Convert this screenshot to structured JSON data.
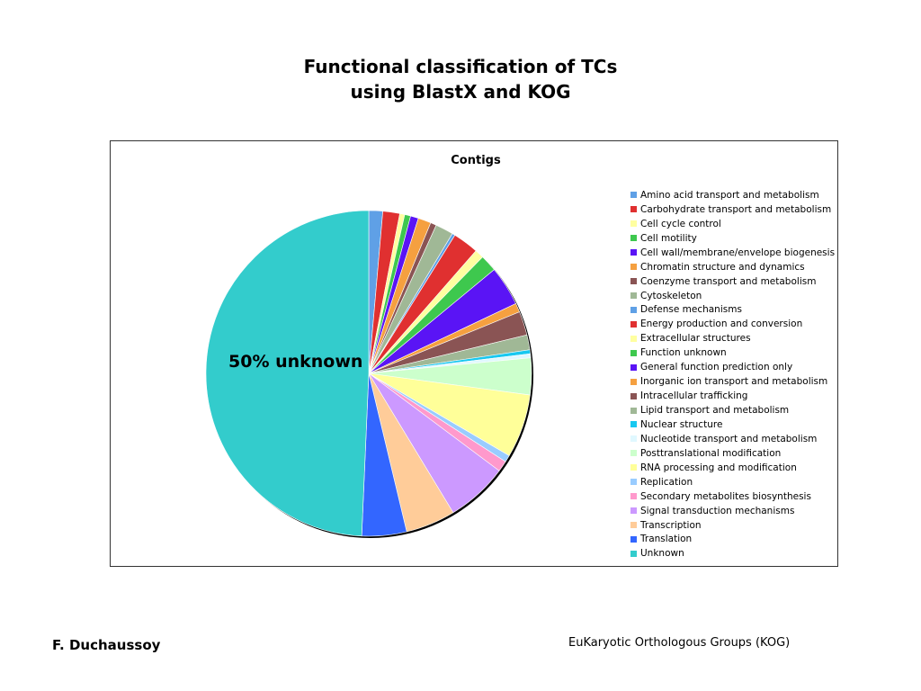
{
  "slide": {
    "title_line1": "Functional classification of TCs",
    "title_line2": "using BlastX and KOG",
    "author": "F. Duchaussoy",
    "footer_note": "EuKaryotic Orthologous Groups (KOG)"
  },
  "chart_data": {
    "type": "pie",
    "title": "Contigs",
    "annotation": "50% unknown",
    "legend_position": "right",
    "start_angle_deg": 0,
    "direction": "clockwise",
    "categories": [
      "Amino acid transport and metabolism",
      "Carbohydrate transport and metabolism",
      "Cell cycle control",
      "Cell motility",
      "Cell wall/membrane/envelope biogenesis",
      "Chromatin structure and dynamics",
      "Coenzyme transport and metabolism",
      "Cytoskeleton",
      "Defense mechanisms",
      "Energy production and conversion",
      "Extracellular structures",
      "Function unknown",
      "General function prediction only",
      "Inorganic ion transport and metabolism",
      "Intracellular trafficking",
      "Lipid transport and metabolism",
      "Nuclear structure",
      "Nucleotide transport and metabolism",
      "Posttranslational modification",
      "RNA processing and modification",
      "Replication",
      "Secondary metabolites biosynthesis",
      "Signal transduction mechanisms",
      "Transcription",
      "Translation",
      "Unknown"
    ],
    "values": [
      1.4,
      1.7,
      0.5,
      0.6,
      0.8,
      1.3,
      0.6,
      1.8,
      0.3,
      2.6,
      0.9,
      1.7,
      4.0,
      0.9,
      2.4,
      1.5,
      0.4,
      0.4,
      3.7,
      6.4,
      0.7,
      1.1,
      6.2,
      5.0,
      4.5,
      50.0
    ],
    "colors": [
      "#5fa0e6",
      "#e03030",
      "#ffffa0",
      "#3ec84e",
      "#5a14f5",
      "#f5a040",
      "#8a5454",
      "#a0b896",
      "#5fa0e6",
      "#e03030",
      "#ffffa0",
      "#3ec84e",
      "#5a14f5",
      "#f5a040",
      "#8a5454",
      "#a0b896",
      "#18c8f0",
      "#e0f8ff",
      "#ccffcc",
      "#ffff99",
      "#99ccff",
      "#ff99cc",
      "#cc99ff",
      "#ffcc99",
      "#3366ff",
      "#33cccc"
    ]
  }
}
